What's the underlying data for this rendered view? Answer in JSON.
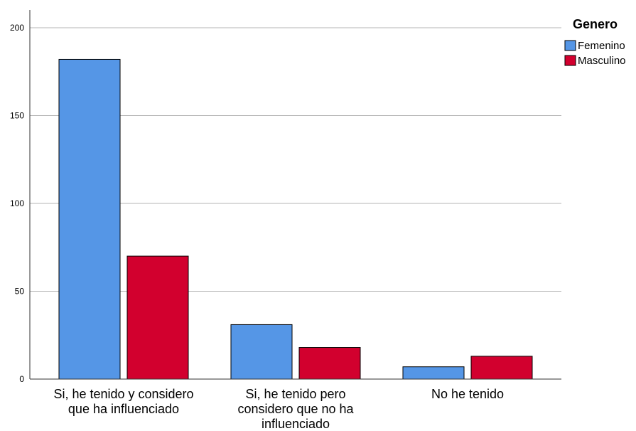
{
  "chart_data": {
    "type": "bar",
    "categories": [
      [
        "Si, he tenido y considero",
        "que ha influenciado"
      ],
      [
        "Si, he tenido pero",
        "considero que no ha",
        "influenciado"
      ],
      [
        "No he tenido"
      ]
    ],
    "series": [
      {
        "name": "Femenino",
        "values": [
          182,
          31,
          7
        ],
        "color": "#5596E6"
      },
      {
        "name": "Masculino",
        "values": [
          70,
          18,
          13
        ],
        "color": "#D2002E"
      }
    ],
    "legend": {
      "title": "Genero",
      "placement": "top-right"
    },
    "yticks": [
      0,
      50,
      100,
      150,
      200
    ],
    "ylim": [
      0,
      200
    ],
    "grid": true,
    "title": "",
    "xlabel": "",
    "ylabel": ""
  }
}
